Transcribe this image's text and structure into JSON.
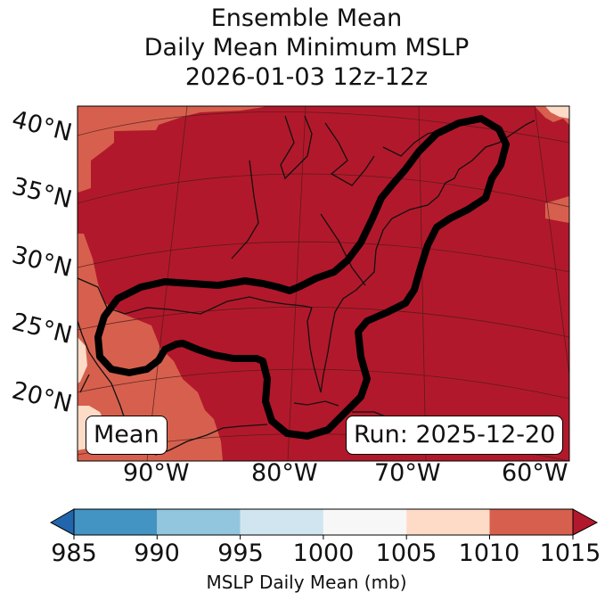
{
  "title": {
    "line1": "Ensemble Mean",
    "line2": "Daily Mean Minimum MSLP",
    "line3": "2026-01-03 12z-12z"
  },
  "map": {
    "lat_labels": [
      "40°N",
      "35°N",
      "30°N",
      "25°N",
      "20°N"
    ],
    "lon_labels": [
      "90°W",
      "80°W",
      "70°W",
      "60°W"
    ],
    "mean_label": "Mean",
    "run_label": "Run: 2025-12-20",
    "colors": {
      "c1010_1015": "#b2182b",
      "c1005_1010": "#d6604d",
      "c1000_1005": "#fddbc7",
      "contour": "#000000"
    }
  },
  "colorbar": {
    "ticks": [
      "985",
      "990",
      "995",
      "1000",
      "1005",
      "1010",
      "1015"
    ],
    "colors": [
      "#4393c3",
      "#92c5de",
      "#d1e5f0",
      "#f7f7f7",
      "#fddbc7",
      "#d6604d"
    ],
    "under_color": "#2166ac",
    "over_color": "#b2182b",
    "label": "MSLP Daily Mean (mb)"
  }
}
